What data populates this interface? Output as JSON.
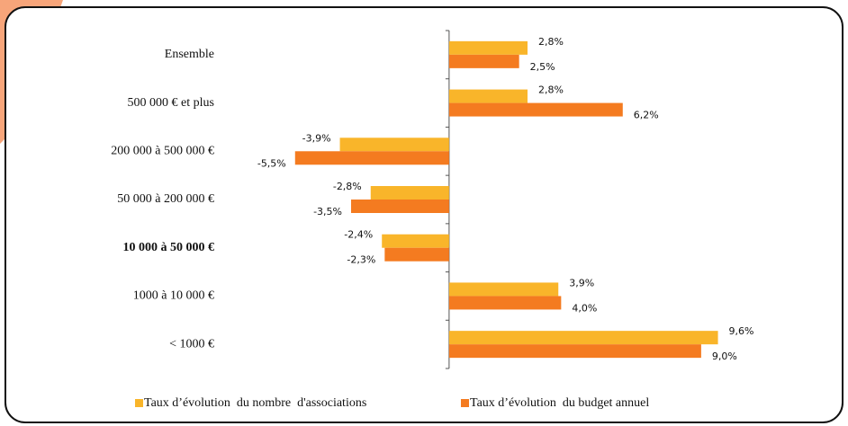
{
  "chart_data": {
    "type": "bar",
    "orientation": "horizontal",
    "categories": [
      "Ensemble",
      "500 000 € et plus",
      "200 000 à 500 000 €",
      "50 000 à 200 000 €",
      "10 000 à 50 000 €",
      "1000 à 10 000 €",
      "< 1000 €"
    ],
    "series": [
      {
        "name": "Taux d’évolution  du nombre  d'associations",
        "color": "#f9b52a",
        "values": [
          2.8,
          2.8,
          -3.9,
          -2.8,
          -2.4,
          3.9,
          9.6
        ],
        "value_labels": [
          "2,8%",
          "2,8%",
          "-3,9%",
          "-2,8%",
          "-2,4%",
          "3,9%",
          "9,6%"
        ]
      },
      {
        "name": "Taux d’évolution  du budget annuel",
        "color": "#f47b20",
        "values": [
          2.5,
          6.2,
          -5.5,
          -3.5,
          -2.3,
          4.0,
          9.0
        ],
        "value_labels": [
          "2,5%",
          "6,2%",
          "-5,5%",
          "-3,5%",
          "-2,3%",
          "4,0%",
          "9,0%"
        ]
      }
    ],
    "xlim": [
      -8,
      10
    ],
    "legend": "bottom"
  }
}
